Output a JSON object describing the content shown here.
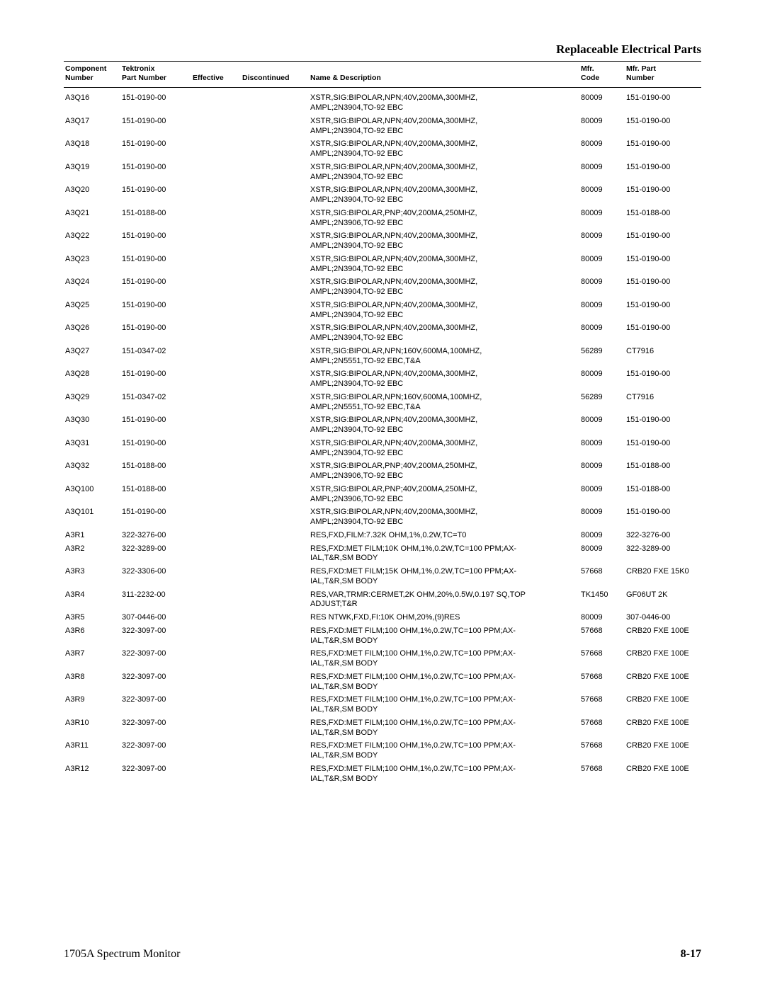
{
  "page": {
    "section_title": "Replaceable Electrical Parts",
    "footer_left": "1705A Spectrum Monitor",
    "footer_right": "8-17"
  },
  "headers": {
    "component": "Component\nNumber",
    "part": "Tektronix\nPart Number",
    "effective": "Effective",
    "discontinued": "Discontinued",
    "desc": "Name & Description",
    "mfrcode": "Mfr.\nCode",
    "mfrpart": "Mfr. Part\nNumber"
  },
  "rows": [
    {
      "comp": "A3Q16",
      "part": "151-0190-00",
      "eff": "",
      "disc": "",
      "desc1": "XSTR,SIG:BIPOLAR,NPN;40V,200MA,300MHZ,",
      "desc2": "AMPL;2N3904,TO-92 EBC",
      "mfrc": "80009",
      "mfrp": "151-0190-00"
    },
    {
      "comp": "A3Q17",
      "part": "151-0190-00",
      "eff": "",
      "disc": "",
      "desc1": "XSTR,SIG:BIPOLAR,NPN;40V,200MA,300MHZ,",
      "desc2": "AMPL;2N3904,TO-92 EBC",
      "mfrc": "80009",
      "mfrp": "151-0190-00"
    },
    {
      "comp": "A3Q18",
      "part": "151-0190-00",
      "eff": "",
      "disc": "",
      "desc1": "XSTR,SIG:BIPOLAR,NPN;40V,200MA,300MHZ,",
      "desc2": "AMPL;2N3904,TO-92 EBC",
      "mfrc": "80009",
      "mfrp": "151-0190-00"
    },
    {
      "comp": "A3Q19",
      "part": "151-0190-00",
      "eff": "",
      "disc": "",
      "desc1": "XSTR,SIG:BIPOLAR,NPN;40V,200MA,300MHZ,",
      "desc2": "AMPL;2N3904,TO-92 EBC",
      "mfrc": "80009",
      "mfrp": "151-0190-00"
    },
    {
      "comp": "A3Q20",
      "part": "151-0190-00",
      "eff": "",
      "disc": "",
      "desc1": "XSTR,SIG:BIPOLAR,NPN;40V,200MA,300MHZ,",
      "desc2": "AMPL;2N3904,TO-92 EBC",
      "mfrc": "80009",
      "mfrp": "151-0190-00"
    },
    {
      "comp": "A3Q21",
      "part": "151-0188-00",
      "eff": "",
      "disc": "",
      "desc1": "XSTR,SIG:BIPOLAR,PNP;40V,200MA,250MHZ,",
      "desc2": "AMPL;2N3906,TO-92 EBC",
      "mfrc": "80009",
      "mfrp": "151-0188-00"
    },
    {
      "comp": "A3Q22",
      "part": "151-0190-00",
      "eff": "",
      "disc": "",
      "desc1": "XSTR,SIG:BIPOLAR,NPN;40V,200MA,300MHZ,",
      "desc2": "AMPL;2N3904,TO-92 EBC",
      "mfrc": "80009",
      "mfrp": "151-0190-00"
    },
    {
      "comp": "A3Q23",
      "part": "151-0190-00",
      "eff": "",
      "disc": "",
      "desc1": "XSTR,SIG:BIPOLAR,NPN;40V,200MA,300MHZ,",
      "desc2": "AMPL;2N3904,TO-92 EBC",
      "mfrc": "80009",
      "mfrp": "151-0190-00"
    },
    {
      "comp": "A3Q24",
      "part": "151-0190-00",
      "eff": "",
      "disc": "",
      "desc1": "XSTR,SIG:BIPOLAR,NPN;40V,200MA,300MHZ,",
      "desc2": "AMPL;2N3904,TO-92 EBC",
      "mfrc": "80009",
      "mfrp": "151-0190-00"
    },
    {
      "comp": "A3Q25",
      "part": "151-0190-00",
      "eff": "",
      "disc": "",
      "desc1": "XSTR,SIG:BIPOLAR,NPN;40V,200MA,300MHZ,",
      "desc2": "AMPL;2N3904,TO-92 EBC",
      "mfrc": "80009",
      "mfrp": "151-0190-00"
    },
    {
      "comp": "A3Q26",
      "part": "151-0190-00",
      "eff": "",
      "disc": "",
      "desc1": "XSTR,SIG:BIPOLAR,NPN;40V,200MA,300MHZ,",
      "desc2": "AMPL;2N3904,TO-92 EBC",
      "mfrc": "80009",
      "mfrp": "151-0190-00"
    },
    {
      "comp": "A3Q27",
      "part": "151-0347-02",
      "eff": "",
      "disc": "",
      "desc1": "XSTR,SIG:BIPOLAR,NPN;160V,600MA,100MHZ,",
      "desc2": "AMPL;2N5551,TO-92 EBC,T&A",
      "mfrc": "56289",
      "mfrp": "CT7916"
    },
    {
      "comp": "A3Q28",
      "part": "151-0190-00",
      "eff": "",
      "disc": "",
      "desc1": "XSTR,SIG:BIPOLAR,NPN;40V,200MA,300MHZ,",
      "desc2": "AMPL;2N3904,TO-92 EBC",
      "mfrc": "80009",
      "mfrp": "151-0190-00"
    },
    {
      "comp": "A3Q29",
      "part": "151-0347-02",
      "eff": "",
      "disc": "",
      "desc1": "XSTR,SIG:BIPOLAR,NPN;160V,600MA,100MHZ,",
      "desc2": "AMPL;2N5551,TO-92 EBC,T&A",
      "mfrc": "56289",
      "mfrp": "CT7916"
    },
    {
      "comp": "A3Q30",
      "part": "151-0190-00",
      "eff": "",
      "disc": "",
      "desc1": "XSTR,SIG:BIPOLAR,NPN;40V,200MA,300MHZ,",
      "desc2": "AMPL;2N3904,TO-92 EBC",
      "mfrc": "80009",
      "mfrp": "151-0190-00"
    },
    {
      "comp": "A3Q31",
      "part": "151-0190-00",
      "eff": "",
      "disc": "",
      "desc1": "XSTR,SIG:BIPOLAR,NPN;40V,200MA,300MHZ,",
      "desc2": "AMPL;2N3904,TO-92 EBC",
      "mfrc": "80009",
      "mfrp": "151-0190-00"
    },
    {
      "comp": "A3Q32",
      "part": "151-0188-00",
      "eff": "",
      "disc": "",
      "desc1": "XSTR,SIG:BIPOLAR,PNP;40V,200MA,250MHZ,",
      "desc2": "AMPL;2N3906,TO-92 EBC",
      "mfrc": "80009",
      "mfrp": "151-0188-00"
    },
    {
      "comp": "A3Q100",
      "part": "151-0188-00",
      "eff": "",
      "disc": "",
      "desc1": "XSTR,SIG:BIPOLAR,PNP;40V,200MA,250MHZ,",
      "desc2": "AMPL;2N3906,TO-92 EBC",
      "mfrc": "80009",
      "mfrp": "151-0188-00"
    },
    {
      "comp": "A3Q101",
      "part": "151-0190-00",
      "eff": "",
      "disc": "",
      "desc1": "XSTR,SIG:BIPOLAR,NPN;40V,200MA,300MHZ,",
      "desc2": "AMPL;2N3904,TO-92 EBC",
      "mfrc": "80009",
      "mfrp": "151-0190-00"
    },
    {
      "comp": "A3R1",
      "part": "322-3276-00",
      "eff": "",
      "disc": "",
      "desc1": "RES,FXD,FILM:7.32K OHM,1%,0.2W,TC=T0",
      "desc2": "",
      "mfrc": "80009",
      "mfrp": "322-3276-00"
    },
    {
      "comp": "A3R2",
      "part": "322-3289-00",
      "eff": "",
      "disc": "",
      "desc1": "RES,FXD:MET FILM;10K OHM,1%,0.2W,TC=100 PPM;AX-",
      "desc2": "IAL,T&R,SM BODY",
      "mfrc": "80009",
      "mfrp": "322-3289-00"
    },
    {
      "comp": "A3R3",
      "part": "322-3306-00",
      "eff": "",
      "disc": "",
      "desc1": "RES,FXD:MET FILM;15K OHM,1%,0.2W,TC=100 PPM;AX-",
      "desc2": "IAL,T&R,SM BODY",
      "mfrc": "57668",
      "mfrp": "CRB20 FXE 15K0"
    },
    {
      "comp": "A3R4",
      "part": "311-2232-00",
      "eff": "",
      "disc": "",
      "desc1": "RES,VAR,TRMR:CERMET,2K OHM,20%,0.5W,0.197 SQ,TOP",
      "desc2": "ADJUST;T&R",
      "mfrc": "TK1450",
      "mfrp": "GF06UT 2K"
    },
    {
      "comp": "A3R5",
      "part": "307-0446-00",
      "eff": "",
      "disc": "",
      "desc1": "RES NTWK,FXD,FI:10K OHM,20%,(9)RES",
      "desc2": "",
      "mfrc": "80009",
      "mfrp": "307-0446-00"
    },
    {
      "comp": "A3R6",
      "part": "322-3097-00",
      "eff": "",
      "disc": "",
      "desc1": "RES,FXD:MET FILM;100 OHM,1%,0.2W,TC=100 PPM;AX-",
      "desc2": "IAL,T&R,SM BODY",
      "mfrc": "57668",
      "mfrp": "CRB20 FXE 100E"
    },
    {
      "comp": "A3R7",
      "part": "322-3097-00",
      "eff": "",
      "disc": "",
      "desc1": "RES,FXD:MET FILM;100 OHM,1%,0.2W,TC=100 PPM;AX-",
      "desc2": "IAL,T&R,SM BODY",
      "mfrc": "57668",
      "mfrp": "CRB20 FXE 100E"
    },
    {
      "comp": "A3R8",
      "part": "322-3097-00",
      "eff": "",
      "disc": "",
      "desc1": "RES,FXD:MET FILM;100 OHM,1%,0.2W,TC=100 PPM;AX-",
      "desc2": "IAL,T&R,SM BODY",
      "mfrc": "57668",
      "mfrp": "CRB20 FXE 100E"
    },
    {
      "comp": "A3R9",
      "part": "322-3097-00",
      "eff": "",
      "disc": "",
      "desc1": "RES,FXD:MET FILM;100 OHM,1%,0.2W,TC=100 PPM;AX-",
      "desc2": "IAL,T&R,SM BODY",
      "mfrc": "57668",
      "mfrp": "CRB20 FXE 100E"
    },
    {
      "comp": "A3R10",
      "part": "322-3097-00",
      "eff": "",
      "disc": "",
      "desc1": "RES,FXD:MET FILM;100 OHM,1%,0.2W,TC=100 PPM;AX-",
      "desc2": "IAL,T&R,SM BODY",
      "mfrc": "57668",
      "mfrp": "CRB20 FXE 100E"
    },
    {
      "comp": "A3R11",
      "part": "322-3097-00",
      "eff": "",
      "disc": "",
      "desc1": "RES,FXD:MET FILM;100 OHM,1%,0.2W,TC=100 PPM;AX-",
      "desc2": "IAL,T&R,SM BODY",
      "mfrc": "57668",
      "mfrp": "CRB20 FXE 100E"
    },
    {
      "comp": "A3R12",
      "part": "322-3097-00",
      "eff": "",
      "disc": "",
      "desc1": "RES,FXD:MET FILM;100 OHM,1%,0.2W,TC=100 PPM;AX-",
      "desc2": "IAL,T&R,SM BODY",
      "mfrc": "57668",
      "mfrp": "CRB20 FXE 100E"
    }
  ]
}
